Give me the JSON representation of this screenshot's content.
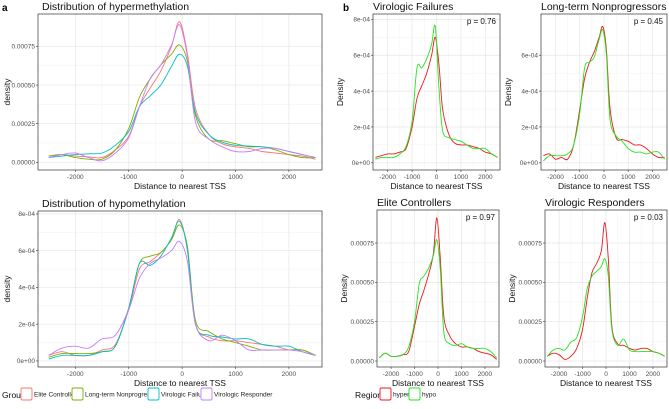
{
  "panel_tags": [
    "a",
    "b"
  ],
  "legends": {
    "group": {
      "title": "Group",
      "items": [
        {
          "label": "Elite Controller",
          "color": "#F8766D"
        },
        {
          "label": "Long-term Nonprogressor",
          "color": "#7CAE00"
        },
        {
          "label": "Virologic Failure",
          "color": "#00BFC4"
        },
        {
          "label": "Virologic Responder",
          "color": "#C77CFF"
        }
      ]
    },
    "regions": {
      "title": "Regions",
      "items": [
        {
          "label": "hyper",
          "color": "#F0161C"
        },
        {
          "label": "hypo",
          "color": "#22E51E"
        }
      ]
    }
  },
  "chart_data": [
    {
      "type": "line",
      "title": "Distribution of hypermethylation",
      "xlabel": "Distance to nearest TSS",
      "ylabel": "density",
      "xlim": [
        -2700,
        2620
      ],
      "ylim": [
        -5e-05,
        0.00096
      ],
      "xticks": [
        -2000,
        -1000,
        0,
        1000,
        2000
      ],
      "xtick_labels": [
        "-2000",
        "-1000",
        "0",
        "1000",
        "2000"
      ],
      "yticks": [
        0,
        0.00025,
        0.0005,
        0.00075
      ],
      "ytick_labels": [
        "0.00000",
        "0.00025",
        "0.00050",
        "0.00075"
      ],
      "y_multiplier": 0.0001,
      "series": [
        {
          "name": "Elite Controller",
          "color": "#F8766D",
          "values": [
            0.4,
            0.5,
            0.4,
            0.35,
            0.3,
            0.8,
            1.7,
            3.6,
            4.8,
            5.9,
            7.5,
            9.1,
            7.0,
            3.5,
            1.8,
            1.2,
            1.0,
            0.9,
            0.7,
            0.6,
            0.5,
            0.4,
            0.2
          ]
        },
        {
          "name": "Long-term Nonprogressor",
          "color": "#7CAE00",
          "values": [
            0.4,
            0.5,
            0.3,
            0.2,
            0.2,
            0.8,
            2.2,
            4.2,
            5.4,
            6.3,
            7.0,
            7.6,
            6.5,
            3.0,
            1.5,
            1.4,
            1.2,
            1.0,
            1.0,
            0.8,
            0.5,
            0.3,
            0.3
          ]
        },
        {
          "name": "Virologic Failure",
          "color": "#00BFC4",
          "values": [
            0.3,
            0.4,
            0.5,
            0.55,
            0.6,
            1.1,
            2.0,
            3.6,
            4.3,
            5.0,
            6.2,
            7.0,
            6.2,
            3.2,
            1.8,
            1.3,
            1.1,
            1.05,
            1.0,
            0.9,
            0.7,
            0.5,
            0.3
          ]
        },
        {
          "name": "Virologic Responder",
          "color": "#C77CFF",
          "values": [
            0.3,
            0.5,
            0.6,
            0.3,
            0.1,
            0.6,
            1.6,
            3.6,
            5.4,
            6.3,
            7.6,
            8.9,
            6.8,
            2.6,
            1.5,
            1.0,
            0.7,
            0.7,
            0.9,
            0.9,
            0.7,
            0.5,
            0.3
          ]
        }
      ]
    },
    {
      "type": "line",
      "title": "Distribution of hypomethylation",
      "xlabel": "Distance to nearest TSS",
      "ylabel": "density",
      "xlim": [
        -2700,
        2620
      ],
      "ylim": [
        -3.3e-05,
        0.000816
      ],
      "xticks": [
        -2000,
        -1000,
        0,
        1000,
        2000
      ],
      "xtick_labels": [
        "-2000",
        "-1000",
        "0",
        "1000",
        "2000"
      ],
      "yticks": [
        0,
        0.0002,
        0.0004,
        0.0006,
        0.0008
      ],
      "ytick_labels": [
        "0e+00",
        "2e-04",
        "4e-04",
        "6e-04",
        "8e-04"
      ],
      "y_multiplier": 0.0001,
      "series": [
        {
          "name": "Elite Controller",
          "color": "#F8766D",
          "values": [
            0.3,
            0.5,
            0.3,
            0.3,
            0.6,
            0.9,
            2.8,
            5.0,
            5.4,
            5.9,
            6.6,
            7.7,
            6.0,
            2.0,
            1.3,
            1.1,
            1.1,
            1.0,
            0.9,
            0.8,
            0.6,
            0.6,
            0.3
          ]
        },
        {
          "name": "Long-term Nonprogressor",
          "color": "#7CAE00",
          "values": [
            0.2,
            0.4,
            0.4,
            0.4,
            0.5,
            0.8,
            2.9,
            5.3,
            5.7,
            5.9,
            6.6,
            7.4,
            6.2,
            2.2,
            1.6,
            1.2,
            1.0,
            0.8,
            0.6,
            0.6,
            0.6,
            0.6,
            0.3
          ]
        },
        {
          "name": "Virologic Failure",
          "color": "#00BFC4",
          "values": [
            0.1,
            0.3,
            0.3,
            0.3,
            0.5,
            0.8,
            2.9,
            5.3,
            5.2,
            5.7,
            6.7,
            7.6,
            6.0,
            2.0,
            1.4,
            1.3,
            1.2,
            1.2,
            0.9,
            0.8,
            0.8,
            0.5,
            0.3
          ]
        },
        {
          "name": "Virologic Responder",
          "color": "#C77CFF",
          "values": [
            0.3,
            0.7,
            0.8,
            0.7,
            1.2,
            1.4,
            2.8,
            4.5,
            5.3,
            5.6,
            6.0,
            6.5,
            5.4,
            2.0,
            1.1,
            1.4,
            1.1,
            0.6,
            0.6,
            0.6,
            0.6,
            0.5,
            0.3
          ]
        }
      ]
    },
    {
      "type": "line",
      "title": "Virologic Failures",
      "annotation": "p = 0.76",
      "xlabel": "Distance to nearest TSS",
      "ylabel": "Density",
      "xlim": [
        -2600,
        2600
      ],
      "ylim": [
        -4e-05,
        0.00083
      ],
      "xticks": [
        -2000,
        -1000,
        0,
        1000,
        2000
      ],
      "xtick_labels": [
        "-2000",
        "-1000",
        "0",
        "1000",
        "2000"
      ],
      "yticks": [
        0,
        0.0002,
        0.0004,
        0.0006,
        0.0008
      ],
      "ytick_labels": [
        "0e+00",
        "2e-04",
        "4e-04",
        "6e-04",
        "8e-04"
      ],
      "y_multiplier": 0.0001,
      "series": [
        {
          "name": "hyper",
          "color": "#F0161C",
          "values": [
            0.3,
            0.4,
            0.5,
            0.5,
            0.6,
            0.8,
            2.0,
            3.6,
            4.3,
            5.0,
            6.0,
            7.0,
            5.5,
            3.0,
            1.6,
            1.1,
            1.0,
            1.0,
            0.9,
            0.8,
            0.6,
            0.5,
            0.3
          ]
        },
        {
          "name": "hypo",
          "color": "#22E51E",
          "values": [
            0.2,
            0.3,
            0.3,
            0.3,
            0.5,
            0.9,
            2.3,
            5.3,
            5.3,
            5.8,
            6.6,
            7.6,
            4.2,
            1.8,
            1.4,
            1.3,
            1.2,
            1.0,
            0.8,
            0.8,
            0.8,
            0.5,
            0.3
          ]
        }
      ]
    },
    {
      "type": "line",
      "title": "Long-term Nonprogressors",
      "annotation": "p = 0.45",
      "xlabel": "Distance to nearest TSS",
      "ylabel": "Density",
      "xlim": [
        -2600,
        2600
      ],
      "ylim": [
        -4e-05,
        0.00083
      ],
      "xticks": [
        -2000,
        -1000,
        0,
        1000,
        2000
      ],
      "xtick_labels": [
        "-2000",
        "-1000",
        "0",
        "1000",
        "2000"
      ],
      "yticks": [
        0,
        0.0002,
        0.0004,
        0.0006
      ],
      "ytick_labels": [
        "0e+00",
        "2e-04",
        "4e-04",
        "6e-04"
      ],
      "y_multiplier": 0.0001,
      "series": [
        {
          "name": "hyper",
          "color": "#F0161C",
          "values": [
            0.4,
            0.5,
            0.2,
            0.3,
            0.2,
            1.0,
            3.0,
            4.7,
            5.6,
            6.2,
            7.0,
            7.6,
            6.3,
            3.0,
            1.4,
            1.3,
            1.2,
            1.0,
            1.0,
            0.8,
            0.5,
            0.3,
            0.3
          ]
        },
        {
          "name": "hypo",
          "color": "#22E51E",
          "values": [
            0.1,
            0.4,
            0.4,
            0.4,
            0.5,
            1.0,
            2.8,
            5.3,
            5.6,
            5.9,
            6.9,
            7.4,
            6.0,
            2.4,
            1.5,
            1.2,
            0.8,
            0.6,
            0.6,
            0.5,
            0.6,
            0.6,
            0.2
          ]
        }
      ]
    },
    {
      "type": "line",
      "title": "Elite Controllers",
      "annotation": "p = 0.97",
      "xlabel": "Distance to nearest TSS",
      "ylabel": "Density",
      "xlim": [
        -2600,
        2600
      ],
      "ylim": [
        -3.8e-05,
        0.00096
      ],
      "xticks": [
        -2000,
        -1000,
        0,
        1000,
        2000
      ],
      "xtick_labels": [
        "-2000",
        "-1000",
        "0",
        "1000",
        "2000"
      ],
      "yticks": [
        0,
        0.00025,
        0.0005,
        0.00075
      ],
      "ytick_labels": [
        "0.00000",
        "0.00025",
        "0.00050",
        "0.00075"
      ],
      "y_multiplier": 0.0001,
      "series": [
        {
          "name": "hyper",
          "color": "#F0161C",
          "values": [
            0.2,
            0.5,
            0.3,
            0.3,
            0.4,
            0.6,
            2.2,
            3.6,
            4.5,
            5.5,
            6.8,
            9.1,
            6.5,
            2.8,
            1.6,
            1.1,
            0.9,
            0.9,
            0.8,
            0.6,
            0.5,
            0.4,
            0.1
          ]
        },
        {
          "name": "hypo",
          "color": "#22E51E",
          "values": [
            0.2,
            0.5,
            0.3,
            0.3,
            0.4,
            0.9,
            2.5,
            4.9,
            5.4,
            5.9,
            6.7,
            7.7,
            5.8,
            1.8,
            1.1,
            1.0,
            1.1,
            0.9,
            0.8,
            0.8,
            0.8,
            0.6,
            0.2
          ]
        }
      ]
    },
    {
      "type": "line",
      "title": "Virologic Responders",
      "annotation": "p = 0.03",
      "xlabel": "Distance to nearest TSS",
      "ylabel": "Density",
      "xlim": [
        -2600,
        2600
      ],
      "ylim": [
        -3.8e-05,
        0.00096
      ],
      "xticks": [
        -2000,
        -1000,
        0,
        1000,
        2000
      ],
      "xtick_labels": [
        "-2000",
        "-1000",
        "0",
        "1000",
        "2000"
      ],
      "yticks": [
        0,
        0.00025,
        0.0005,
        0.00075
      ],
      "ytick_labels": [
        "0.00000",
        "0.00025",
        "0.00050",
        "0.00075"
      ],
      "y_multiplier": 0.0001,
      "series": [
        {
          "name": "hyper",
          "color": "#F0161C",
          "values": [
            0.3,
            0.5,
            0.4,
            0.1,
            0.3,
            0.8,
            2.0,
            4.0,
            5.6,
            6.2,
            7.0,
            8.8,
            6.5,
            2.2,
            1.1,
            1.0,
            0.8,
            0.7,
            0.8,
            0.8,
            0.6,
            0.5,
            0.3
          ]
        },
        {
          "name": "hypo",
          "color": "#22E51E",
          "values": [
            0.3,
            0.7,
            0.8,
            0.7,
            1.2,
            1.5,
            2.8,
            4.6,
            5.4,
            5.7,
            6.0,
            6.5,
            5.4,
            2.0,
            1.0,
            1.4,
            0.7,
            0.6,
            0.6,
            0.6,
            0.6,
            0.5,
            0.3
          ]
        }
      ]
    }
  ],
  "x_grid": [
    -2500,
    -2250,
    -2000,
    -1750,
    -1500,
    -1250,
    -1000,
    -800,
    -600,
    -400,
    -200,
    -50,
    100,
    250,
    500,
    750,
    1000,
    1250,
    1500,
    1750,
    2000,
    2250,
    2500
  ]
}
